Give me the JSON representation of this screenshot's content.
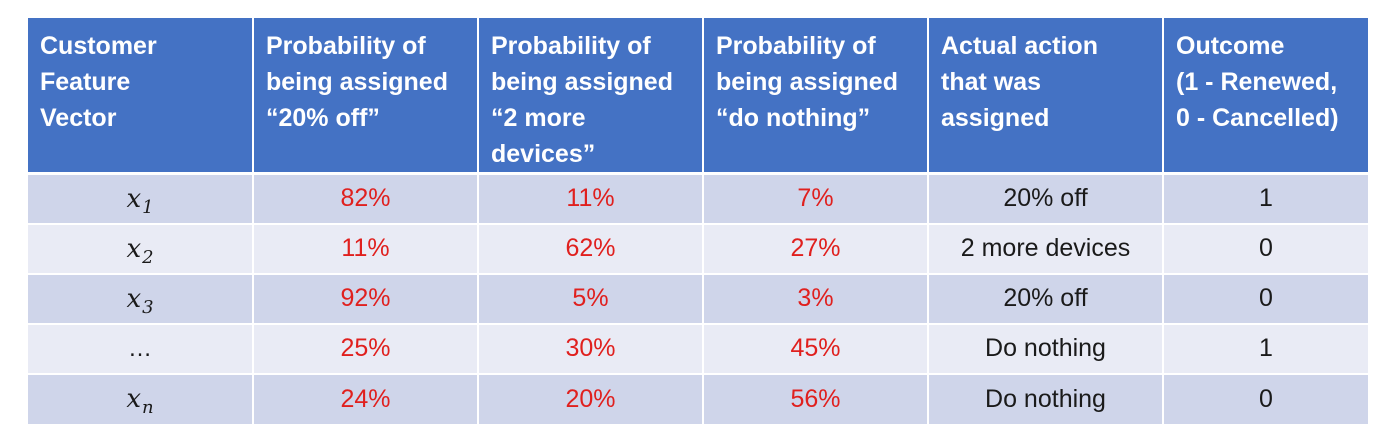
{
  "table": {
    "headers": [
      "Customer\nFeature\nVector",
      "Probability of\nbeing assigned\n“20% off”",
      "Probability of\nbeing assigned\n“2 more\ndevices”",
      "Probability of\nbeing assigned\n“do nothing”",
      "Actual action\nthat was\nassigned",
      "Outcome\n(1 - Renewed,\n0 - Cancelled)"
    ],
    "rows": [
      {
        "vec_base": "x",
        "vec_sub": "1",
        "p_20off": "82%",
        "p_2more": "11%",
        "p_nothing": "7%",
        "action": "20% off",
        "outcome": "1"
      },
      {
        "vec_base": "x",
        "vec_sub": "2",
        "p_20off": "11%",
        "p_2more": "62%",
        "p_nothing": "27%",
        "action": "2 more devices",
        "outcome": "0"
      },
      {
        "vec_base": "x",
        "vec_sub": "3",
        "p_20off": "92%",
        "p_2more": "5%",
        "p_nothing": "3%",
        "action": "20% off",
        "outcome": "0"
      },
      {
        "vec_base": "…",
        "vec_sub": "",
        "p_20off": "25%",
        "p_2more": "30%",
        "p_nothing": "45%",
        "action": "Do nothing",
        "outcome": "1"
      },
      {
        "vec_base": "x",
        "vec_sub": "n",
        "p_20off": "24%",
        "p_2more": "20%",
        "p_nothing": "56%",
        "action": "Do nothing",
        "outcome": "0"
      }
    ]
  },
  "colors": {
    "header_bg": "#4472c4",
    "row_dark": "#cfd5ea",
    "row_light": "#e9ebf5",
    "probability_text": "#e0201e"
  }
}
